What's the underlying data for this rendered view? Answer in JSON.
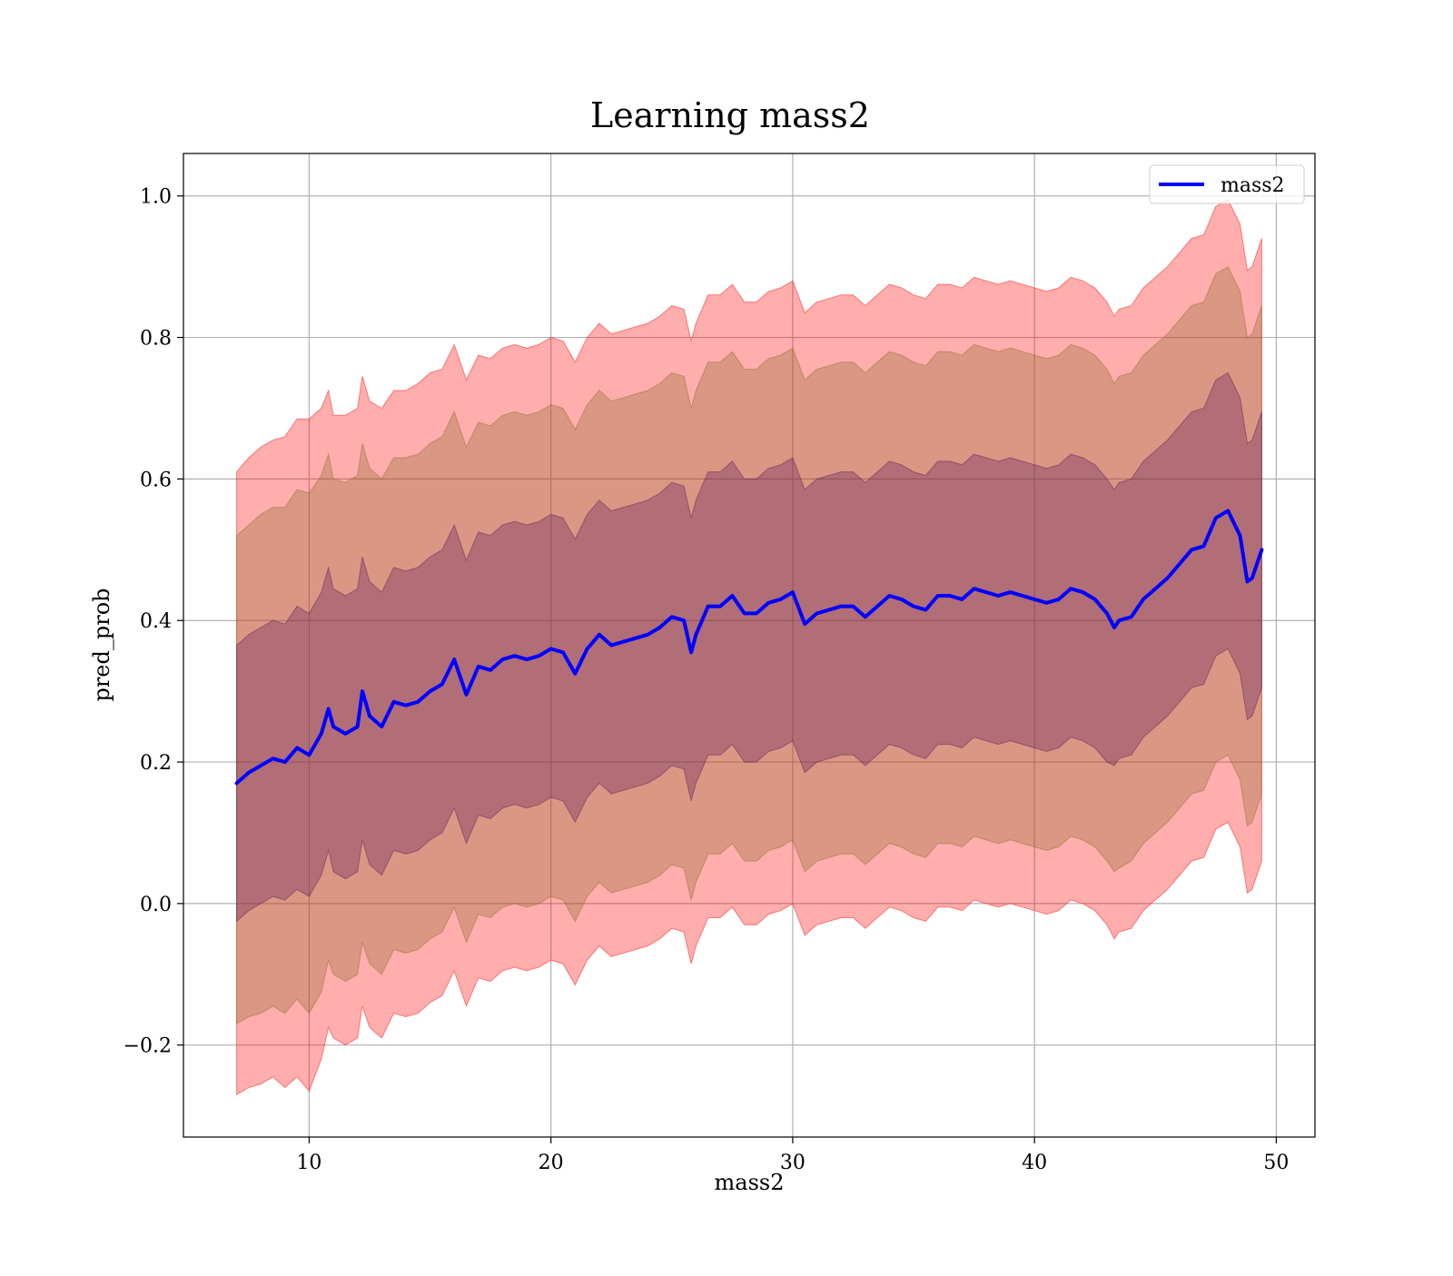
{
  "chart_data": {
    "type": "line",
    "title": "Learning mass2",
    "xlabel": "mass2",
    "ylabel": "pred_prob",
    "xlim": [
      4.8,
      51.6
    ],
    "ylim": [
      -0.33,
      1.06
    ],
    "xticks": [
      10,
      20,
      30,
      40,
      50
    ],
    "yticks": [
      -0.2,
      0.0,
      0.2,
      0.4,
      0.6,
      0.8,
      1.0
    ],
    "xtick_labels": [
      "10",
      "20",
      "30",
      "40",
      "50"
    ],
    "ytick_labels": [
      "−0.2",
      "0.0",
      "0.2",
      "0.4",
      "0.6",
      "0.8",
      "1.0"
    ],
    "grid": true,
    "legend": {
      "position": "top-right",
      "entries": [
        "mass2"
      ]
    },
    "x": [
      7.0,
      7.5,
      8.0,
      8.5,
      9.0,
      9.5,
      10.0,
      10.5,
      10.8,
      11.0,
      11.5,
      12.0,
      12.2,
      12.5,
      13.0,
      13.5,
      14.0,
      14.5,
      15.0,
      15.5,
      16.0,
      16.5,
      17.0,
      17.5,
      18.0,
      18.5,
      19.0,
      19.5,
      20.0,
      20.5,
      21.0,
      21.5,
      22.0,
      22.5,
      23.0,
      23.5,
      24.0,
      24.5,
      25.0,
      25.5,
      25.8,
      26.0,
      26.5,
      27.0,
      27.5,
      28.0,
      28.5,
      29.0,
      29.5,
      30.0,
      30.5,
      31.0,
      31.5,
      32.0,
      32.5,
      33.0,
      33.5,
      34.0,
      34.5,
      35.0,
      35.5,
      36.0,
      36.5,
      37.0,
      37.5,
      38.0,
      38.5,
      39.0,
      39.5,
      40.0,
      40.5,
      41.0,
      41.5,
      42.0,
      42.5,
      43.0,
      43.3,
      43.5,
      44.0,
      44.5,
      45.0,
      45.5,
      46.0,
      46.5,
      47.0,
      47.5,
      48.0,
      48.5,
      48.8,
      49.0,
      49.4
    ],
    "series": [
      {
        "name": "mass2",
        "color": "#0000ff",
        "values": [
          0.17,
          0.185,
          0.195,
          0.205,
          0.2,
          0.22,
          0.21,
          0.24,
          0.275,
          0.25,
          0.24,
          0.25,
          0.3,
          0.265,
          0.25,
          0.285,
          0.28,
          0.285,
          0.3,
          0.31,
          0.345,
          0.295,
          0.335,
          0.33,
          0.345,
          0.35,
          0.345,
          0.35,
          0.36,
          0.355,
          0.325,
          0.36,
          0.38,
          0.365,
          0.37,
          0.375,
          0.38,
          0.39,
          0.405,
          0.4,
          0.355,
          0.38,
          0.42,
          0.42,
          0.435,
          0.41,
          0.41,
          0.425,
          0.43,
          0.44,
          0.395,
          0.41,
          0.415,
          0.42,
          0.42,
          0.405,
          0.42,
          0.435,
          0.43,
          0.42,
          0.415,
          0.435,
          0.435,
          0.43,
          0.445,
          0.44,
          0.435,
          0.44,
          0.435,
          0.43,
          0.425,
          0.43,
          0.445,
          0.44,
          0.43,
          0.41,
          0.39,
          0.4,
          0.405,
          0.43,
          0.445,
          0.46,
          0.48,
          0.5,
          0.505,
          0.545,
          0.555,
          0.52,
          0.455,
          0.46,
          0.5
        ]
      }
    ],
    "bands": [
      {
        "color": "#ff0000",
        "upper": [
          0.61,
          0.63,
          0.645,
          0.655,
          0.66,
          0.685,
          0.685,
          0.7,
          0.725,
          0.69,
          0.69,
          0.7,
          0.745,
          0.71,
          0.7,
          0.725,
          0.725,
          0.735,
          0.75,
          0.755,
          0.79,
          0.74,
          0.775,
          0.77,
          0.785,
          0.79,
          0.785,
          0.79,
          0.8,
          0.795,
          0.765,
          0.8,
          0.82,
          0.805,
          0.81,
          0.815,
          0.82,
          0.83,
          0.845,
          0.84,
          0.795,
          0.82,
          0.86,
          0.86,
          0.875,
          0.85,
          0.85,
          0.865,
          0.87,
          0.88,
          0.835,
          0.85,
          0.855,
          0.86,
          0.86,
          0.845,
          0.86,
          0.875,
          0.87,
          0.86,
          0.855,
          0.875,
          0.875,
          0.87,
          0.885,
          0.88,
          0.875,
          0.88,
          0.875,
          0.87,
          0.865,
          0.87,
          0.885,
          0.88,
          0.87,
          0.85,
          0.83,
          0.84,
          0.845,
          0.87,
          0.885,
          0.9,
          0.92,
          0.94,
          0.945,
          0.985,
          0.995,
          0.96,
          0.895,
          0.9,
          0.94
        ],
        "lower": [
          -0.27,
          -0.26,
          -0.255,
          -0.245,
          -0.26,
          -0.245,
          -0.265,
          -0.22,
          -0.175,
          -0.19,
          -0.2,
          -0.19,
          -0.145,
          -0.175,
          -0.19,
          -0.155,
          -0.16,
          -0.155,
          -0.14,
          -0.13,
          -0.095,
          -0.145,
          -0.105,
          -0.11,
          -0.095,
          -0.09,
          -0.095,
          -0.09,
          -0.08,
          -0.085,
          -0.115,
          -0.08,
          -0.06,
          -0.075,
          -0.07,
          -0.065,
          -0.06,
          -0.05,
          -0.035,
          -0.04,
          -0.085,
          -0.06,
          -0.02,
          -0.02,
          -0.005,
          -0.03,
          -0.03,
          -0.015,
          -0.01,
          0.0,
          -0.045,
          -0.03,
          -0.025,
          -0.02,
          -0.02,
          -0.035,
          -0.02,
          -0.005,
          -0.01,
          -0.02,
          -0.025,
          -0.005,
          -0.005,
          -0.01,
          0.005,
          0.0,
          -0.005,
          0.0,
          -0.005,
          -0.01,
          -0.015,
          -0.01,
          0.005,
          0.0,
          -0.01,
          -0.03,
          -0.05,
          -0.04,
          -0.035,
          -0.01,
          0.005,
          0.02,
          0.04,
          0.06,
          0.065,
          0.105,
          0.115,
          0.08,
          0.015,
          0.02,
          0.06
        ]
      },
      {
        "color": "#8b6b2a",
        "upper": [
          0.52,
          0.535,
          0.55,
          0.56,
          0.56,
          0.585,
          0.58,
          0.605,
          0.635,
          0.6,
          0.595,
          0.605,
          0.65,
          0.615,
          0.6,
          0.63,
          0.63,
          0.635,
          0.65,
          0.66,
          0.695,
          0.645,
          0.68,
          0.675,
          0.69,
          0.695,
          0.69,
          0.695,
          0.705,
          0.7,
          0.67,
          0.705,
          0.725,
          0.71,
          0.715,
          0.72,
          0.725,
          0.735,
          0.75,
          0.745,
          0.7,
          0.725,
          0.765,
          0.765,
          0.78,
          0.755,
          0.755,
          0.77,
          0.775,
          0.785,
          0.74,
          0.755,
          0.76,
          0.765,
          0.765,
          0.75,
          0.765,
          0.78,
          0.775,
          0.765,
          0.76,
          0.78,
          0.78,
          0.775,
          0.79,
          0.785,
          0.78,
          0.785,
          0.78,
          0.775,
          0.77,
          0.775,
          0.79,
          0.785,
          0.775,
          0.755,
          0.735,
          0.745,
          0.75,
          0.775,
          0.79,
          0.805,
          0.825,
          0.845,
          0.85,
          0.89,
          0.9,
          0.865,
          0.8,
          0.805,
          0.845
        ],
        "lower": [
          -0.17,
          -0.16,
          -0.155,
          -0.145,
          -0.155,
          -0.135,
          -0.155,
          -0.125,
          -0.08,
          -0.1,
          -0.11,
          -0.1,
          -0.055,
          -0.085,
          -0.1,
          -0.065,
          -0.07,
          -0.065,
          -0.05,
          -0.04,
          -0.005,
          -0.055,
          -0.015,
          -0.02,
          -0.005,
          0.0,
          -0.005,
          0.0,
          0.01,
          0.005,
          -0.025,
          0.01,
          0.03,
          0.015,
          0.02,
          0.025,
          0.03,
          0.04,
          0.055,
          0.05,
          0.005,
          0.03,
          0.07,
          0.07,
          0.085,
          0.06,
          0.06,
          0.075,
          0.08,
          0.09,
          0.045,
          0.06,
          0.065,
          0.07,
          0.07,
          0.055,
          0.07,
          0.085,
          0.08,
          0.07,
          0.065,
          0.085,
          0.085,
          0.08,
          0.095,
          0.09,
          0.085,
          0.09,
          0.085,
          0.08,
          0.075,
          0.08,
          0.095,
          0.09,
          0.08,
          0.06,
          0.045,
          0.05,
          0.06,
          0.085,
          0.1,
          0.115,
          0.135,
          0.155,
          0.16,
          0.2,
          0.21,
          0.175,
          0.11,
          0.115,
          0.155
        ]
      },
      {
        "color": "#5a1a5a",
        "upper": [
          0.365,
          0.38,
          0.39,
          0.4,
          0.395,
          0.42,
          0.41,
          0.44,
          0.475,
          0.445,
          0.435,
          0.445,
          0.49,
          0.455,
          0.44,
          0.475,
          0.47,
          0.475,
          0.49,
          0.5,
          0.535,
          0.485,
          0.525,
          0.52,
          0.535,
          0.54,
          0.535,
          0.54,
          0.55,
          0.545,
          0.515,
          0.55,
          0.57,
          0.555,
          0.56,
          0.565,
          0.57,
          0.58,
          0.595,
          0.59,
          0.545,
          0.57,
          0.61,
          0.61,
          0.625,
          0.6,
          0.6,
          0.615,
          0.62,
          0.63,
          0.585,
          0.6,
          0.605,
          0.61,
          0.61,
          0.595,
          0.61,
          0.625,
          0.62,
          0.61,
          0.605,
          0.625,
          0.625,
          0.62,
          0.635,
          0.63,
          0.625,
          0.63,
          0.625,
          0.62,
          0.615,
          0.62,
          0.635,
          0.63,
          0.62,
          0.6,
          0.585,
          0.595,
          0.6,
          0.625,
          0.64,
          0.655,
          0.675,
          0.695,
          0.7,
          0.74,
          0.75,
          0.715,
          0.65,
          0.655,
          0.695
        ],
        "lower": [
          -0.025,
          -0.01,
          0.0,
          0.01,
          0.005,
          0.02,
          0.01,
          0.04,
          0.075,
          0.045,
          0.035,
          0.045,
          0.09,
          0.055,
          0.04,
          0.075,
          0.07,
          0.075,
          0.09,
          0.1,
          0.135,
          0.085,
          0.125,
          0.12,
          0.135,
          0.14,
          0.135,
          0.14,
          0.15,
          0.145,
          0.115,
          0.15,
          0.17,
          0.155,
          0.16,
          0.165,
          0.17,
          0.18,
          0.195,
          0.19,
          0.145,
          0.17,
          0.21,
          0.21,
          0.225,
          0.2,
          0.2,
          0.215,
          0.22,
          0.23,
          0.185,
          0.2,
          0.205,
          0.21,
          0.21,
          0.195,
          0.21,
          0.225,
          0.22,
          0.21,
          0.205,
          0.225,
          0.225,
          0.22,
          0.235,
          0.23,
          0.225,
          0.23,
          0.225,
          0.22,
          0.215,
          0.22,
          0.235,
          0.23,
          0.22,
          0.2,
          0.195,
          0.205,
          0.21,
          0.235,
          0.25,
          0.265,
          0.285,
          0.305,
          0.31,
          0.35,
          0.36,
          0.325,
          0.26,
          0.265,
          0.305
        ]
      }
    ]
  }
}
